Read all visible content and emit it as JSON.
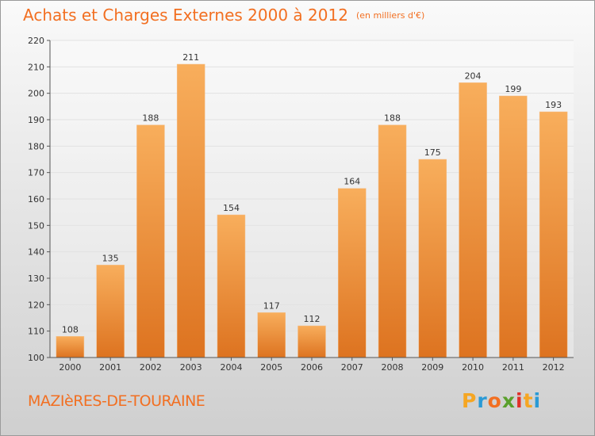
{
  "header": {
    "title": "Achats et Charges Externes 2000 à 2012",
    "subtitle": "(en milliers d'€)"
  },
  "footer": {
    "commune": "MAZIèRES-DE-TOURAINE",
    "logo_letters": [
      "P",
      "r",
      "o",
      "x",
      "i",
      "t",
      "i"
    ],
    "logo_colors": [
      "#f5a623",
      "#2a9ad6",
      "#f26f21",
      "#5aa02c",
      "#e0312a",
      "#f5a623",
      "#2a9ad6"
    ]
  },
  "colors": {
    "bar_light": "#f8ae5c",
    "bar_dark": "#dd7320",
    "axis": "#555555",
    "grid": "#e2e2e2",
    "text": "#333333",
    "accent": "#f26f21"
  },
  "chart_data": {
    "type": "bar",
    "categories": [
      "2000",
      "2001",
      "2002",
      "2003",
      "2004",
      "2005",
      "2006",
      "2007",
      "2008",
      "2009",
      "2010",
      "2011",
      "2012"
    ],
    "values": [
      108,
      135,
      188,
      211,
      154,
      117,
      112,
      164,
      188,
      175,
      204,
      199,
      193
    ],
    "data_labels": [
      "108",
      "135",
      "188",
      "211",
      "154",
      "117",
      "112",
      "164",
      "188",
      "175",
      "204",
      "199",
      "193"
    ],
    "title": "Achats et Charges Externes 2000 à 2012",
    "subtitle": "(en milliers d'€)",
    "ylim": [
      100,
      220
    ],
    "yticks": [
      100,
      110,
      120,
      130,
      140,
      150,
      160,
      170,
      180,
      190,
      200,
      210,
      220
    ],
    "grid": true,
    "legend": "none"
  }
}
